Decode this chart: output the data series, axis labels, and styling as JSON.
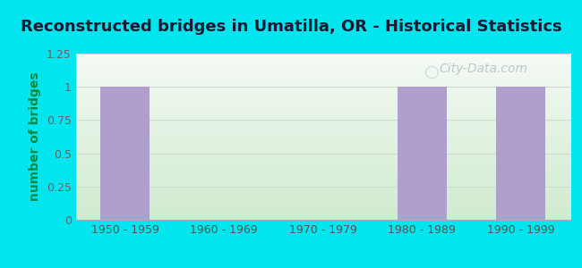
{
  "title": "Reconstructed bridges in Umatilla, OR - Historical Statistics",
  "xlabel": "",
  "ylabel": "number of bridges",
  "categories": [
    "1950 - 1959",
    "1960 - 1969",
    "1970 - 1979",
    "1980 - 1989",
    "1990 - 1999"
  ],
  "values": [
    1,
    0,
    0,
    1,
    1
  ],
  "bar_color": "#b09fcc",
  "ylim": [
    0,
    1.25
  ],
  "yticks": [
    0,
    0.25,
    0.5,
    0.75,
    1,
    1.25
  ],
  "background_outer": "#00e5ee",
  "background_plot_topleft": "#d8edd8",
  "background_plot_topright": "#e8f5e8",
  "background_plot_bottom": "#f0f8f0",
  "title_fontsize": 13,
  "ylabel_fontsize": 10,
  "tick_fontsize": 9,
  "watermark_text": "City-Data.com",
  "bar_width": 0.5
}
